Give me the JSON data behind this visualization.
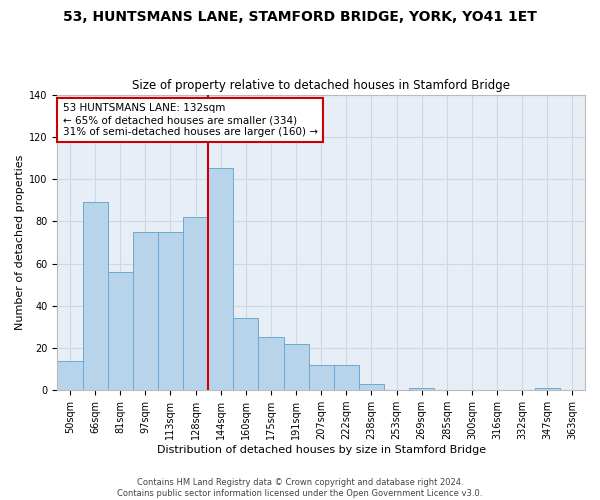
{
  "title": "53, HUNTSMANS LANE, STAMFORD BRIDGE, YORK, YO41 1ET",
  "subtitle": "Size of property relative to detached houses in Stamford Bridge",
  "xlabel": "Distribution of detached houses by size in Stamford Bridge",
  "ylabel": "Number of detached properties",
  "bin_labels": [
    "50sqm",
    "66sqm",
    "81sqm",
    "97sqm",
    "113sqm",
    "128sqm",
    "144sqm",
    "160sqm",
    "175sqm",
    "191sqm",
    "207sqm",
    "222sqm",
    "238sqm",
    "253sqm",
    "269sqm",
    "285sqm",
    "300sqm",
    "316sqm",
    "332sqm",
    "347sqm",
    "363sqm"
  ],
  "bar_values": [
    14,
    89,
    56,
    75,
    75,
    82,
    105,
    34,
    25,
    22,
    12,
    12,
    3,
    0,
    1,
    0,
    0,
    0,
    0,
    1,
    0
  ],
  "bar_color": "#b8d4ea",
  "bar_edge_color": "#6aaad4",
  "vline_x_index": 6,
  "annotation_text": "53 HUNTSMANS LANE: 132sqm\n← 65% of detached houses are smaller (334)\n31% of semi-detached houses are larger (160) →",
  "annotation_box_color": "#ffffff",
  "annotation_box_edge": "#cc0000",
  "vline_color": "#cc0000",
  "ylim": [
    0,
    140
  ],
  "yticks": [
    0,
    20,
    40,
    60,
    80,
    100,
    120,
    140
  ],
  "grid_color": "#ccd8e8",
  "bg_color": "#e8eef6",
  "fig_bg_color": "#ffffff",
  "footer": "Contains HM Land Registry data © Crown copyright and database right 2024.\nContains public sector information licensed under the Open Government Licence v3.0.",
  "title_fontsize": 10,
  "subtitle_fontsize": 8.5,
  "ylabel_fontsize": 8,
  "xlabel_fontsize": 8,
  "tick_fontsize": 7,
  "annotation_fontsize": 7.5,
  "footer_fontsize": 6
}
